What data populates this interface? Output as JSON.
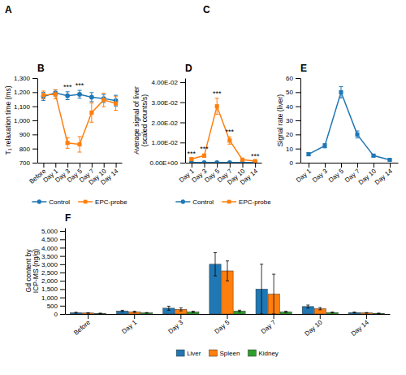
{
  "chart_data": [
    {
      "type": "image",
      "title": "A"
    },
    {
      "type": "image",
      "title": "C"
    },
    {
      "type": "line",
      "title": "B",
      "categories": [
        "Before",
        "Day 1",
        "Day 3",
        "Day 5",
        "Day 7",
        "Day 10",
        "Day 14"
      ],
      "ylabel": "T₁ relaxation time (ms)",
      "ylim": [
        700,
        1300
      ],
      "yticks": [
        700,
        800,
        900,
        {
          "value": 1000,
          "label": "1,000"
        },
        {
          "value": 1100,
          "label": "1,100"
        },
        {
          "value": 1200,
          "label": "1,200"
        },
        {
          "value": 1300,
          "label": "1,300"
        }
      ],
      "series": [
        {
          "name": "Control",
          "marker": "circle",
          "values": [
            1170,
            1195,
            1175,
            1185,
            1165,
            1155,
            1140
          ],
          "errors": [
            28,
            22,
            28,
            28,
            32,
            28,
            38
          ]
        },
        {
          "name": "EPC-probe",
          "marker": "square",
          "values": [
            1180,
            1185,
            840,
            830,
            1055,
            1145,
            1120
          ],
          "errors": [
            28,
            32,
            38,
            55,
            68,
            48,
            48
          ]
        }
      ],
      "annotations": [
        {
          "x": "Day 3",
          "text": "***"
        },
        {
          "x": "Day 5",
          "text": "***"
        }
      ],
      "grid": false,
      "legend": "bottom"
    },
    {
      "type": "line",
      "title": "D",
      "categories": [
        "Day 1",
        "Day 3",
        "Day 5",
        "Day 7",
        "Day 10",
        "Day 14"
      ],
      "ylabel": "Average signal of liver\n(scaled counts/s)",
      "ylim": [
        0,
        0.042
      ],
      "yticks": [
        {
          "value": 0,
          "label": "0.00E+00"
        },
        {
          "value": 0.01,
          "label": "1.00E-02"
        },
        {
          "value": 0.02,
          "label": "2.00E-02"
        },
        {
          "value": 0.03,
          "label": "3.00E-02"
        },
        {
          "value": 0.04,
          "label": "4.00E-02"
        }
      ],
      "series": [
        {
          "name": "Control",
          "marker": "circle",
          "values": [
            0.0001,
            0.0001,
            0.0001,
            0.0001,
            0.0001,
            0.0001
          ],
          "errors": [
            5e-05,
            5e-05,
            5e-05,
            5e-05,
            5e-05,
            5e-05
          ]
        },
        {
          "name": "EPC-probe",
          "marker": "square",
          "values": [
            0.0018,
            0.0035,
            0.028,
            0.011,
            0.0015,
            0.0008
          ],
          "errors": [
            0.0004,
            0.0008,
            0.004,
            0.0018,
            0.0004,
            0.0002
          ]
        }
      ],
      "annotations": [
        {
          "x": "Day 1",
          "text": "***"
        },
        {
          "x": "Day 3",
          "text": "***"
        },
        {
          "x": "Day 5",
          "text": "***"
        },
        {
          "x": "Day 7",
          "text": "***"
        },
        {
          "x": "Day 14",
          "text": "***"
        }
      ],
      "grid": false,
      "legend": "bottom"
    },
    {
      "type": "line",
      "title": "E",
      "categories": [
        "Day 1",
        "Day 3",
        "Day 5",
        "Day 7",
        "Day 10",
        "Day 14"
      ],
      "ylabel": "Signal rate (liver)",
      "ylim": [
        0,
        60
      ],
      "yticks": [
        0,
        10,
        20,
        30,
        40,
        50,
        60
      ],
      "series": [
        {
          "marker": "square",
          "values": [
            6,
            12,
            50,
            20,
            5,
            2
          ],
          "errors": [
            1,
            1.5,
            4,
            2.5,
            0.8,
            0.4
          ]
        }
      ],
      "grid": false
    },
    {
      "type": "bar",
      "title": "F",
      "categories": [
        "Before",
        "Day 1",
        "Day 3",
        "Day 5",
        "Day 7",
        "Day 10",
        "Day 14"
      ],
      "ylabel": "Gd content by\nICP-MS (ng/g)",
      "ylim": [
        0,
        5200
      ],
      "yticks": [
        0,
        500,
        {
          "value": 1000,
          "label": "1,000"
        },
        {
          "value": 1500,
          "label": "1,500"
        },
        {
          "value": 2000,
          "label": "2,000"
        },
        {
          "value": 2500,
          "label": "2,500"
        },
        {
          "value": 3000,
          "label": "3,000"
        },
        {
          "value": 3500,
          "label": "3,500"
        },
        {
          "value": 4000,
          "label": "4,000"
        },
        {
          "value": 4500,
          "label": "4,500"
        },
        {
          "value": 5000,
          "label": "5,000"
        }
      ],
      "series": [
        {
          "name": "Liver",
          "values": [
            80,
            180,
            350,
            3000,
            1500,
            450,
            90
          ],
          "errors": [
            25,
            45,
            120,
            700,
            1500,
            90,
            25
          ]
        },
        {
          "name": "Spleen",
          "values": [
            60,
            130,
            280,
            2600,
            1200,
            320,
            70
          ],
          "errors": [
            18,
            35,
            90,
            600,
            1200,
            70,
            18
          ]
        },
        {
          "name": "Kidney",
          "values": [
            40,
            70,
            130,
            180,
            130,
            90,
            40
          ],
          "errors": [
            8,
            18,
            40,
            50,
            35,
            25,
            12
          ]
        }
      ],
      "grid": false,
      "legend": "bottom"
    }
  ]
}
